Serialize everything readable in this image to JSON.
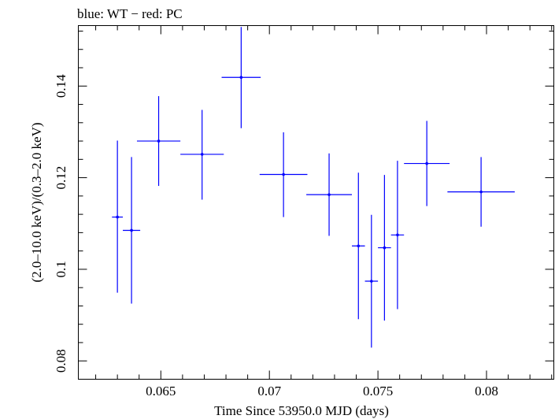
{
  "chart_data": {
    "type": "scatter",
    "title": "blue: WT − red: PC",
    "xlabel": "Time Since 53950.0 MJD (days)",
    "ylabel": "(2.0–10.0 keV)/(0.3–2.0 keV)",
    "xlim": [
      0.0612,
      0.0831
    ],
    "ylim": [
      0.076,
      0.1532
    ],
    "x_ticks": [
      {
        "value": 0.065,
        "label": "0.065"
      },
      {
        "value": 0.07,
        "label": "0.07"
      },
      {
        "value": 0.075,
        "label": "0.075"
      },
      {
        "value": 0.08,
        "label": "0.08"
      }
    ],
    "y_ticks": [
      {
        "value": 0.08,
        "label": "0.08"
      },
      {
        "value": 0.1,
        "label": "0.1"
      },
      {
        "value": 0.12,
        "label": "0.12"
      },
      {
        "value": 0.14,
        "label": "0.14"
      }
    ],
    "series": [
      {
        "name": "WT",
        "color": "#0000ff",
        "points": [
          {
            "x": 0.063,
            "xerr": 0.00025,
            "y": 0.1114,
            "yerr_lo": 0.0165,
            "yerr_hi": 0.0167
          },
          {
            "x": 0.06365,
            "xerr": 0.0004,
            "y": 0.1085,
            "yerr_lo": 0.016,
            "yerr_hi": 0.016
          },
          {
            "x": 0.0649,
            "xerr": 0.001,
            "y": 0.128,
            "yerr_lo": 0.0098,
            "yerr_hi": 0.0098
          },
          {
            "x": 0.0669,
            "xerr": 0.001,
            "y": 0.1251,
            "yerr_lo": 0.0099,
            "yerr_hi": 0.0097
          },
          {
            "x": 0.0687,
            "xerr": 0.0009,
            "y": 0.1419,
            "yerr_lo": 0.0111,
            "yerr_hi": 0.011
          },
          {
            "x": 0.07065,
            "xerr": 0.0011,
            "y": 0.1207,
            "yerr_lo": 0.0093,
            "yerr_hi": 0.0092
          },
          {
            "x": 0.07275,
            "xerr": 0.00105,
            "y": 0.1163,
            "yerr_lo": 0.009,
            "yerr_hi": 0.009
          },
          {
            "x": 0.0741,
            "xerr": 0.0003,
            "y": 0.1051,
            "yerr_lo": 0.016,
            "yerr_hi": 0.016
          },
          {
            "x": 0.0747,
            "xerr": 0.0003,
            "y": 0.0974,
            "yerr_lo": 0.0145,
            "yerr_hi": 0.0145
          },
          {
            "x": 0.0753,
            "xerr": 0.0003,
            "y": 0.1047,
            "yerr_lo": 0.0159,
            "yerr_hi": 0.0159
          },
          {
            "x": 0.0759,
            "xerr": 0.0003,
            "y": 0.1075,
            "yerr_lo": 0.0162,
            "yerr_hi": 0.0162
          },
          {
            "x": 0.07725,
            "xerr": 0.00105,
            "y": 0.1231,
            "yerr_lo": 0.0093,
            "yerr_hi": 0.0093
          },
          {
            "x": 0.07975,
            "xerr": 0.00155,
            "y": 0.1169,
            "yerr_lo": 0.0076,
            "yerr_hi": 0.0076
          }
        ]
      }
    ],
    "grid": false,
    "legend": "none"
  }
}
